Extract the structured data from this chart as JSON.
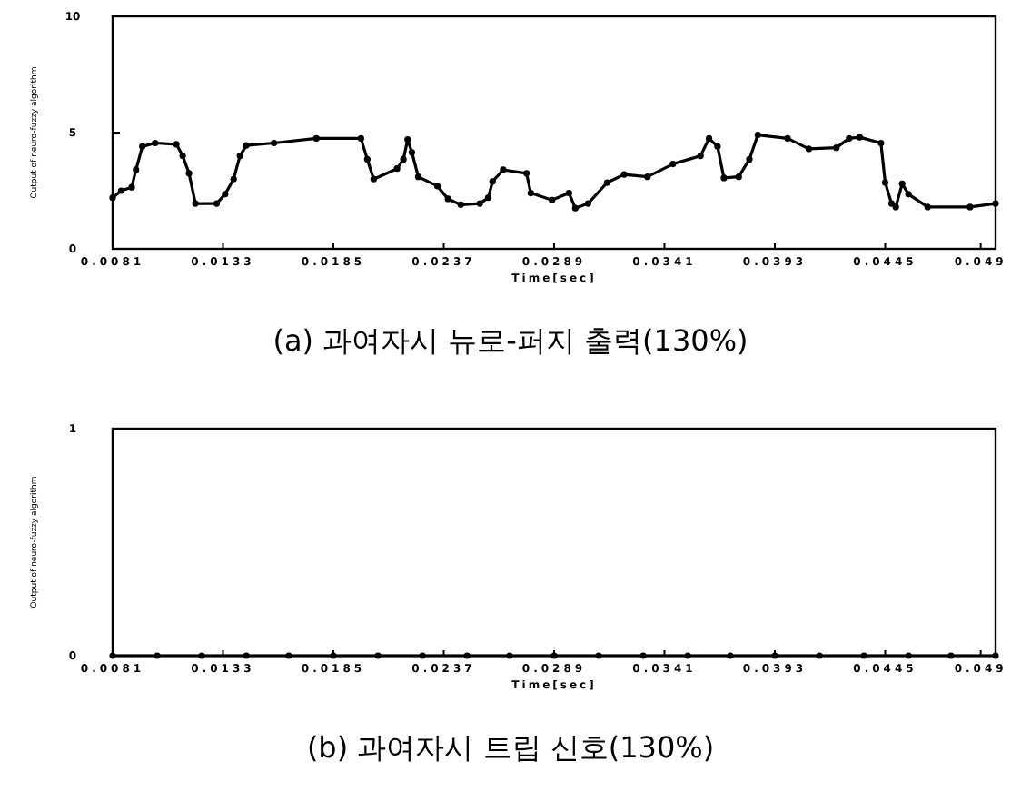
{
  "chart_data": [
    {
      "type": "line",
      "title": "(a) 과여자시 뉴로-퍼지 출력(130%)",
      "xlabel": "Time[sec]",
      "ylabel": "Output of neuro-fuzzy algorithm",
      "xlim": [
        0.0081,
        0.0497
      ],
      "xticks": [
        0.0081,
        0.0133,
        0.0185,
        0.0237,
        0.0289,
        0.0341,
        0.0393,
        0.0445,
        0.049
      ],
      "ylim": [
        0,
        10
      ],
      "yticks": [
        0,
        5,
        10
      ],
      "marker": "circle",
      "series": [
        {
          "color": "#000000",
          "x": [
            0.0081,
            0.0085,
            0.009,
            0.0092,
            0.0095,
            0.0101,
            0.0111,
            0.0114,
            0.0117,
            0.012,
            0.013,
            0.0134,
            0.0138,
            0.0141,
            0.0144,
            0.0157,
            0.0177,
            0.0198,
            0.0201,
            0.0204,
            0.0215,
            0.0218,
            0.022,
            0.0222,
            0.0225,
            0.0234,
            0.0239,
            0.0245,
            0.0254,
            0.0258,
            0.026,
            0.0265,
            0.0276,
            0.0278,
            0.0288,
            0.0296,
            0.0299,
            0.0305,
            0.0314,
            0.0322,
            0.0333,
            0.0345,
            0.0358,
            0.0362,
            0.0366,
            0.0369,
            0.0376,
            0.0381,
            0.0385,
            0.0399,
            0.0409,
            0.0422,
            0.0428,
            0.0433,
            0.0443,
            0.0445,
            0.0448,
            0.045,
            0.0453,
            0.0456,
            0.0465,
            0.0485,
            0.0497
          ],
          "values": [
            2.2,
            2.5,
            2.65,
            3.4,
            4.4,
            4.55,
            4.5,
            4.0,
            3.25,
            1.95,
            1.95,
            2.35,
            3.0,
            4.0,
            4.45,
            4.55,
            4.75,
            4.75,
            3.85,
            3.0,
            3.45,
            3.85,
            4.7,
            4.15,
            3.1,
            2.7,
            2.15,
            1.9,
            1.95,
            2.2,
            2.9,
            3.4,
            3.25,
            2.4,
            2.1,
            2.4,
            1.75,
            1.95,
            2.85,
            3.2,
            3.1,
            3.65,
            4.0,
            4.75,
            4.4,
            3.05,
            3.1,
            3.85,
            4.9,
            4.75,
            4.3,
            4.35,
            4.75,
            4.8,
            4.55,
            2.85,
            1.95,
            1.8,
            2.8,
            2.35,
            1.8,
            1.8,
            1.95
          ]
        }
      ]
    },
    {
      "type": "line",
      "title": "(b) 과여자시 트립 신호(130%)",
      "xlabel": "Time[sec]",
      "ylabel": "Output of neuro-fuzzy algorithm",
      "xlim": [
        0.0081,
        0.0497
      ],
      "xticks": [
        0.0081,
        0.0133,
        0.0185,
        0.0237,
        0.0289,
        0.0341,
        0.0393,
        0.0445,
        0.049
      ],
      "ylim": [
        0,
        1
      ],
      "yticks": [
        0,
        1
      ],
      "marker": "circle",
      "series": [
        {
          "color": "#000000",
          "x": [
            0.0081,
            0.0102,
            0.0123,
            0.0144,
            0.0164,
            0.0185,
            0.0206,
            0.0227,
            0.0248,
            0.0268,
            0.0289,
            0.031,
            0.0331,
            0.0352,
            0.0372,
            0.0393,
            0.0414,
            0.0435,
            0.0456,
            0.0476,
            0.0497
          ],
          "values": [
            0,
            0,
            0,
            0,
            0,
            0,
            0,
            0,
            0,
            0,
            0,
            0,
            0,
            0,
            0,
            0,
            0,
            0,
            0,
            0,
            0
          ]
        }
      ]
    }
  ]
}
